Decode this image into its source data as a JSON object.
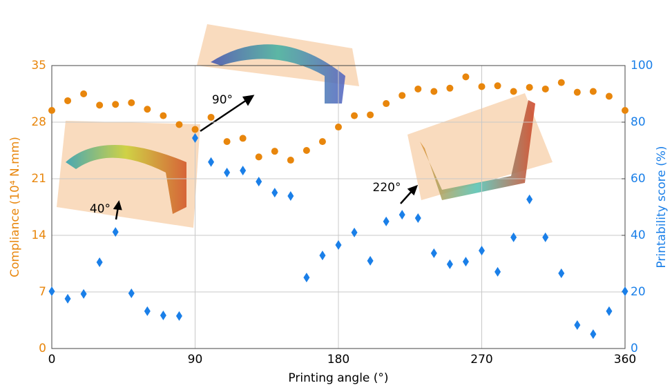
{
  "chart_data": {
    "type": "scatter",
    "x_label": "Printing angle (°)",
    "y_label": "Compliance (10⁴ N.mm)",
    "y2_label": "Printability score (%)",
    "xlim": [
      0,
      360
    ],
    "xticks": [
      0,
      90,
      180,
      270,
      360
    ],
    "ylim": [
      0,
      35
    ],
    "yticks": [
      0,
      7,
      14,
      21,
      28,
      35
    ],
    "y2lim": [
      0,
      100
    ],
    "y2ticks": [
      0,
      20,
      40,
      60,
      80,
      100
    ],
    "grid": true,
    "x": [
      0,
      10,
      20,
      30,
      40,
      50,
      60,
      70,
      80,
      90,
      100,
      110,
      120,
      130,
      140,
      150,
      160,
      170,
      180,
      190,
      200,
      210,
      220,
      230,
      240,
      250,
      260,
      270,
      280,
      290,
      300,
      310,
      320,
      330,
      340,
      350,
      360
    ],
    "series": [
      {
        "color": "#e8860c",
        "marker": "circle",
        "axis": "y",
        "values": [
          29.45,
          30.65,
          31.5,
          30.1,
          30.2,
          30.4,
          29.6,
          28.8,
          27.7,
          27.1,
          28.6,
          25.6,
          26.0,
          23.7,
          24.4,
          23.3,
          24.5,
          25.6,
          27.4,
          28.8,
          28.9,
          30.3,
          31.3,
          32.1,
          31.8,
          32.2,
          33.6,
          32.4,
          32.5,
          31.8,
          32.3,
          32.1,
          32.9,
          31.7,
          31.8,
          31.2,
          29.45
        ]
      },
      {
        "color": "#1a7fe8",
        "marker": "diamond",
        "axis": "y2",
        "values": [
          20.2,
          17.6,
          19.3,
          30.5,
          41.2,
          19.5,
          13.2,
          11.7,
          11.5,
          74.4,
          65.9,
          62.2,
          62.9,
          59.0,
          55.1,
          53.9,
          25.1,
          32.9,
          36.6,
          41.0,
          31.0,
          44.9,
          47.3,
          46.1,
          33.7,
          29.8,
          30.7,
          34.6,
          27.1,
          39.3,
          52.7,
          39.3,
          26.6,
          8.3,
          5.1,
          13.2,
          20.2
        ]
      }
    ],
    "annotations": [
      "40°",
      "90°",
      "220°"
    ]
  }
}
